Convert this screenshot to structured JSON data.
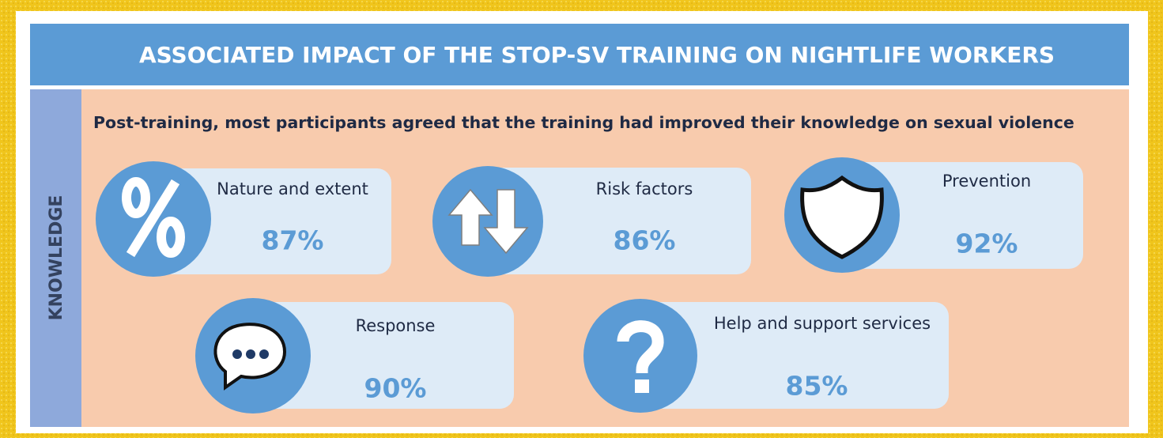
{
  "header": {
    "title": "ASSOCIATED IMPACT OF THE STOP-SV TRAINING ON NIGHTLIFE WORKERS"
  },
  "sidebar": {
    "label": "KNOWLEDGE"
  },
  "subtitle": "Post-training, most participants agreed that the training had improved their knowledge on sexual violence",
  "items": [
    {
      "label": "Nature and extent",
      "value": "87%"
    },
    {
      "label": "Risk factors",
      "value": "86%"
    },
    {
      "label": "Prevention",
      "value": "92%"
    },
    {
      "label": "Response",
      "value": "90%"
    },
    {
      "label": "Help and support services",
      "value": "85%"
    }
  ]
}
